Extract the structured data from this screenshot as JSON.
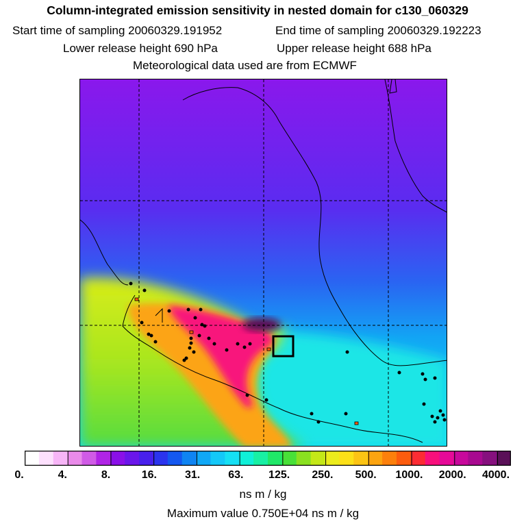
{
  "header": {
    "title": "Column-integrated emission sensitivity in nested domain for c130_060329",
    "start_time": "Start time of sampling 20060329.191952",
    "end_time": "End time of sampling 20060329.192223",
    "lower_release": "Lower release height  690 hPa",
    "upper_release": "Upper release height  688 hPa",
    "met_data": "Meteorological data used are from ECMWF"
  },
  "colorbar": {
    "tick_labels": [
      "0.",
      "4.",
      "8.",
      "16.",
      "31.",
      "63.",
      "125.",
      "250.",
      "500.",
      "1000.",
      "2000.",
      "4000."
    ],
    "colors": [
      "#ffffff",
      "#fde0fd",
      "#f7b5f7",
      "#e98ae9",
      "#d05be6",
      "#b024e6",
      "#8a10e8",
      "#6a16ea",
      "#4820ec",
      "#2b34ee",
      "#1458f0",
      "#0f84f2",
      "#10a8f6",
      "#14c8f8",
      "#16e0f4",
      "#10f0d8",
      "#18f0a4",
      "#20e868",
      "#48e038",
      "#8ae020",
      "#c4e818",
      "#ecec1c",
      "#fce018",
      "#fcc414",
      "#fca410",
      "#fc800c",
      "#fc5c0e",
      "#fc2c34",
      "#f8107c",
      "#e60a98",
      "#c8089c",
      "#a80a90",
      "#86107e",
      "#5a1058"
    ],
    "unit": "ns m / kg"
  },
  "footer": {
    "max_value": "Maximum value  0.750E+04 ns m / kg"
  }
}
